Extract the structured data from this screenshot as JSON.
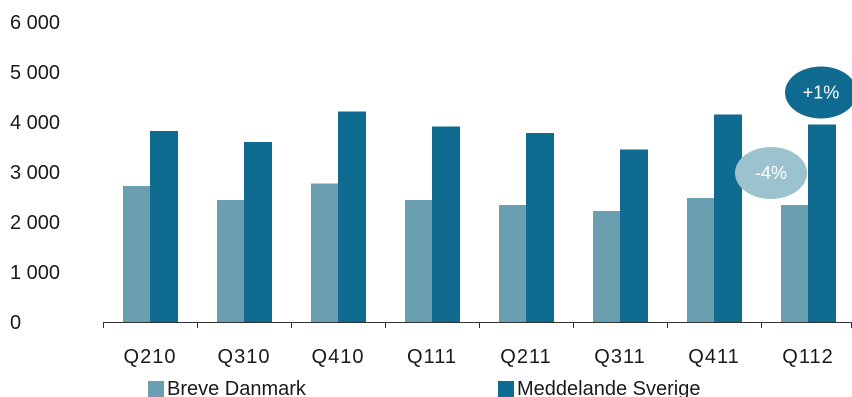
{
  "chart_data": {
    "type": "bar",
    "categories": [
      "Q210",
      "Q310",
      "Q410",
      "Q111",
      "Q211",
      "Q311",
      "Q411",
      "Q112"
    ],
    "series": [
      {
        "name": "Breve Danmark",
        "color": "#6a9fb1",
        "values": [
          2720,
          2440,
          2770,
          2440,
          2340,
          2220,
          2480,
          2340
        ]
      },
      {
        "name": "Meddelande Sverige",
        "color": "#0f6b8f",
        "values": [
          3820,
          3600,
          4210,
          3910,
          3780,
          3450,
          4150,
          3950
        ]
      }
    ],
    "ylim": [
      0,
      6000
    ],
    "yticks": [
      "0",
      "1 000",
      "2 000",
      "3 000",
      "4 000",
      "5 000",
      "6 000"
    ],
    "yticks_values": [
      0,
      1000,
      2000,
      3000,
      4000,
      5000,
      6000
    ],
    "grid": false,
    "legend": "bottom",
    "annotations": [
      {
        "text": "+1%",
        "series": "Meddelande Sverige",
        "category": "Q112",
        "color": "#0f6b8f"
      },
      {
        "text": "-4%",
        "series": "Breve Danmark",
        "category": "Q112",
        "color": "#9cc3cd"
      }
    ]
  }
}
